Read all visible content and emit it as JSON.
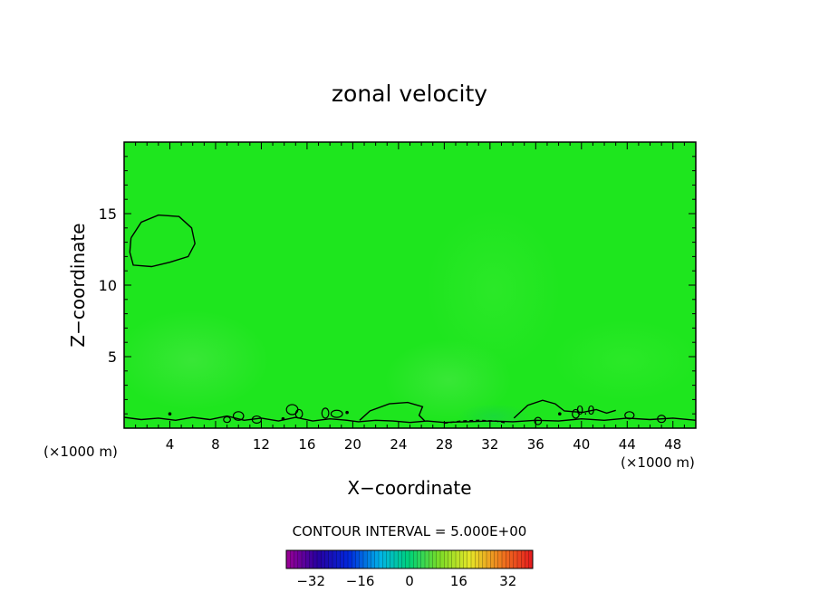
{
  "chart_data": {
    "type": "heatmap",
    "title": "zonal velocity",
    "xlabel": "X−coordinate",
    "ylabel": "Z−coordinate",
    "x_unit_label": "(×1000 m)",
    "y_unit_label": "(×1000 m)",
    "xlim": [
      0,
      50
    ],
    "ylim": [
      0,
      20
    ],
    "x_ticks": [
      4,
      8,
      12,
      16,
      20,
      24,
      28,
      32,
      36,
      40,
      44,
      48
    ],
    "y_ticks": [
      5,
      10,
      15
    ],
    "field_base_color": "#1ee61e",
    "contour_label": "0.0",
    "contour_interval_text": "CONTOUR INTERVAL = 5.000E+00",
    "colorbar": {
      "min": -40,
      "max": 40,
      "ticks": [
        -32,
        -16,
        0,
        16,
        32
      ],
      "colormap": "rainbow"
    },
    "contours": [
      {
        "level": 0,
        "dashed": false,
        "points": [
          [
            0.6,
            13.3
          ],
          [
            1.5,
            14.4
          ],
          [
            3.0,
            14.9
          ],
          [
            4.8,
            14.8
          ],
          [
            5.9,
            14.0
          ],
          [
            6.2,
            12.9
          ],
          [
            5.6,
            12.0
          ],
          [
            4.0,
            11.6
          ],
          [
            2.4,
            11.3
          ],
          [
            0.8,
            11.4
          ],
          [
            0.5,
            12.3
          ],
          [
            0.6,
            13.3
          ]
        ]
      },
      {
        "level": 0,
        "dashed": false,
        "points": [
          [
            0,
            0.75
          ],
          [
            1.5,
            0.6
          ],
          [
            3,
            0.7
          ],
          [
            4.5,
            0.55
          ],
          [
            6,
            0.75
          ],
          [
            7.5,
            0.6
          ],
          [
            9,
            0.85
          ],
          [
            10.5,
            0.55
          ],
          [
            12,
            0.7
          ],
          [
            13.5,
            0.5
          ],
          [
            15,
            0.75
          ],
          [
            16.5,
            0.5
          ],
          [
            18,
            0.65
          ],
          [
            19.5,
            0.55
          ],
          [
            20.5,
            0.45
          ],
          [
            22,
            0.55
          ],
          [
            23.5,
            0.5
          ],
          [
            25,
            0.4
          ],
          [
            26.5,
            0.5
          ],
          [
            28,
            0.4
          ],
          [
            30,
            0.45
          ],
          [
            32,
            0.5
          ],
          [
            34,
            0.45
          ],
          [
            36,
            0.55
          ],
          [
            38,
            0.5
          ],
          [
            40,
            0.65
          ],
          [
            42,
            0.55
          ],
          [
            44,
            0.7
          ],
          [
            46,
            0.6
          ],
          [
            48,
            0.7
          ],
          [
            50,
            0.55
          ]
        ]
      },
      {
        "level": 0,
        "dashed": false,
        "points": [
          [
            20.6,
            0.55
          ],
          [
            21.5,
            1.2
          ],
          [
            23.2,
            1.7
          ],
          [
            24.8,
            1.8
          ],
          [
            26.1,
            1.5
          ],
          [
            25.8,
            0.9
          ],
          [
            26.3,
            0.5
          ]
        ]
      },
      {
        "level": 0,
        "dashed": false,
        "points": [
          [
            34.1,
            0.7
          ],
          [
            35.3,
            1.6
          ],
          [
            36.6,
            1.95
          ],
          [
            37.7,
            1.7
          ],
          [
            38.5,
            1.2
          ],
          [
            40.1,
            1.1
          ],
          [
            41.3,
            1.3
          ],
          [
            42.2,
            1.05
          ],
          [
            43.0,
            1.25
          ]
        ]
      },
      {
        "level": 0,
        "dashed": true,
        "points": [
          [
            28.0,
            0.35
          ],
          [
            29.5,
            0.5
          ],
          [
            31.0,
            0.55
          ],
          [
            32.5,
            0.5
          ],
          [
            33.5,
            0.35
          ]
        ]
      }
    ],
    "small_loops": [
      [
        14.7,
        1.3,
        0.5,
        0.35
      ],
      [
        15.3,
        1.0,
        0.3,
        0.3
      ],
      [
        17.6,
        1.05,
        0.3,
        0.35
      ],
      [
        18.6,
        1.0,
        0.5,
        0.25
      ],
      [
        10.0,
        0.85,
        0.45,
        0.3
      ],
      [
        11.6,
        0.6,
        0.4,
        0.25
      ],
      [
        9.0,
        0.6,
        0.3,
        0.2
      ],
      [
        39.5,
        1.0,
        0.3,
        0.3
      ],
      [
        44.2,
        0.9,
        0.4,
        0.25
      ],
      [
        47.0,
        0.65,
        0.35,
        0.25
      ],
      [
        36.2,
        0.5,
        0.3,
        0.25
      ]
    ],
    "dots": [
      [
        4.0,
        1.0
      ],
      [
        13.9,
        0.65
      ],
      [
        19.5,
        1.1
      ],
      [
        38.1,
        1.0
      ]
    ]
  }
}
